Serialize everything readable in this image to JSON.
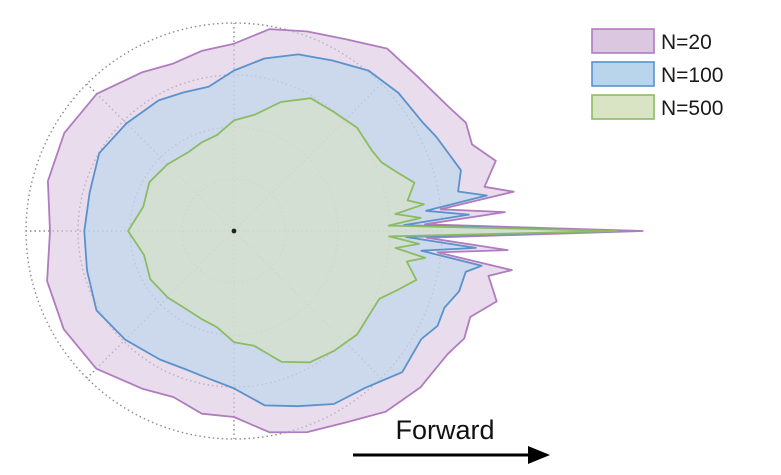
{
  "chart_data": {
    "type": "area",
    "subtype": "polar-radar",
    "title": "",
    "xlabel": "",
    "ylabel": "",
    "grid": true,
    "legend_placement": "top-right",
    "annotation": {
      "text": "Forward",
      "arrow_direction": "right"
    },
    "rings": [
      0.5,
      1.0,
      1.5,
      2.0
    ],
    "spokes_deg": [
      0,
      45,
      90,
      135,
      180,
      225,
      270,
      315
    ],
    "angles_deg": [
      0,
      2,
      4,
      6,
      8,
      10,
      15,
      20,
      25,
      30,
      40,
      50,
      60,
      70,
      80,
      90,
      100,
      110,
      120,
      135,
      150,
      165,
      180
    ],
    "series": [
      {
        "name": "N=20",
        "fill_color": "#dcc7e1",
        "edge_color": "#b07cbf",
        "values": [
          3.93,
          1.83,
          2.62,
          2.0,
          2.7,
          2.45,
          2.58,
          2.44,
          2.46,
          2.36,
          2.35,
          2.25,
          2.15,
          2.05,
          1.95,
          1.82,
          1.75,
          1.72,
          1.75,
          1.84,
          1.89,
          1.86,
          1.8
        ]
      },
      {
        "name": "N=100",
        "fill_color": "#b9d5ec",
        "edge_color": "#5a92cb",
        "values": [
          3.68,
          1.65,
          2.3,
          1.83,
          2.43,
          2.23,
          2.26,
          2.17,
          2.15,
          2.09,
          2.08,
          2.0,
          1.9,
          1.8,
          1.7,
          1.52,
          1.43,
          1.41,
          1.44,
          1.48,
          1.51,
          1.45,
          1.43
        ]
      },
      {
        "name": "N=500",
        "fill_color": "#d8e4c4",
        "edge_color": "#8cbc62",
        "values": [
          3.68,
          1.5,
          1.8,
          1.55,
          1.85,
          1.7,
          1.83,
          1.66,
          1.55,
          1.54,
          1.53,
          1.52,
          1.45,
          1.33,
          1.14,
          1.05,
          0.95,
          0.9,
          0.88,
          0.92,
          0.93,
          0.9,
          1.0
        ]
      }
    ]
  }
}
